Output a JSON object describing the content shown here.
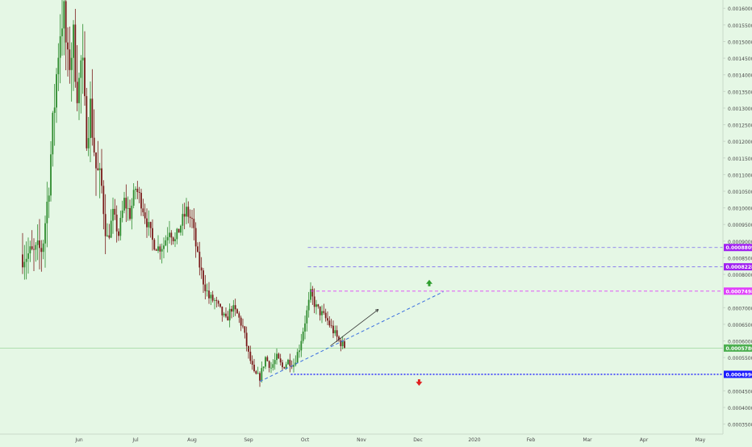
{
  "theme": {
    "background": "#e5f7e5",
    "axis_line": "#c9d8c9",
    "axis_text": "#4a4a4a",
    "up_color": "#2e8b2e",
    "down_color": "#7a1a1a",
    "current_price_color": "#4caf50",
    "resistance_color": "#a020f0",
    "resistance_line_color": "#7b68ee",
    "pink_level_color": "#e040fb",
    "support_color": "#1a1aff",
    "trendline_color": "#3a6fe0",
    "up_arrow_color": "#2e9e2e",
    "down_arrow_color": "#e02020",
    "projection_color": "#333333"
  },
  "chart_data": {
    "type": "candlestick",
    "title": "",
    "xlabel": "",
    "ylabel": "",
    "ylim": [
      0.00032,
      0.00162
    ],
    "y_ticks": [
      "0.0003500",
      "0.0004000",
      "0.0004500",
      "0.0005000",
      "0.0005500",
      "0.0006000",
      "0.0006500",
      "0.0007000",
      "0.0007500",
      "0.0008000",
      "0.0008500",
      "0.0009000",
      "0.0009500",
      "0.0010000",
      "0.0010500",
      "0.0011000",
      "0.0011500",
      "0.0012000",
      "0.0012500",
      "0.0013000",
      "0.0013500",
      "0.0014000",
      "0.0014500",
      "0.0015000",
      "0.0015500",
      "0.0016000"
    ],
    "x_ticks": [
      {
        "label": "Jun",
        "month": 6
      },
      {
        "label": "Jul",
        "month": 7
      },
      {
        "label": "Aug",
        "month": 8
      },
      {
        "label": "Sep",
        "month": 9
      },
      {
        "label": "Oct",
        "month": 10
      },
      {
        "label": "Nov",
        "month": 11
      },
      {
        "label": "Dec",
        "month": 12
      },
      {
        "label": "2020",
        "month": 13
      },
      {
        "label": "Feb",
        "month": 14
      },
      {
        "label": "Mar",
        "month": 15
      },
      {
        "label": "Apr",
        "month": 16
      },
      {
        "label": "May",
        "month": 17
      }
    ],
    "price_trace": [
      [
        5.0,
        0.00086
      ],
      [
        5.2,
        0.00086
      ],
      [
        5.35,
        0.00088
      ],
      [
        5.45,
        0.00104
      ],
      [
        5.55,
        0.00128
      ],
      [
        5.65,
        0.00152
      ],
      [
        5.72,
        0.0016
      ],
      [
        5.8,
        0.00142
      ],
      [
        5.9,
        0.0015
      ],
      [
        5.98,
        0.00134
      ],
      [
        6.05,
        0.00146
      ],
      [
        6.12,
        0.00122
      ],
      [
        6.2,
        0.0013
      ],
      [
        6.3,
        0.00112
      ],
      [
        6.4,
        0.00106
      ],
      [
        6.5,
        0.0009
      ],
      [
        6.6,
        0.00098
      ],
      [
        6.7,
        0.00092
      ],
      [
        6.8,
        0.00102
      ],
      [
        6.9,
        0.00098
      ],
      [
        7.0,
        0.00106
      ],
      [
        7.1,
        0.00102
      ],
      [
        7.2,
        0.00096
      ],
      [
        7.3,
        0.0009
      ],
      [
        7.4,
        0.00088
      ],
      [
        7.5,
        0.00089
      ],
      [
        7.6,
        0.00094
      ],
      [
        7.7,
        0.0009
      ],
      [
        7.8,
        0.00095
      ],
      [
        7.9,
        0.00099
      ],
      [
        8.0,
        0.00096
      ],
      [
        8.1,
        0.00085
      ],
      [
        8.2,
        0.00078
      ],
      [
        8.3,
        0.00073
      ],
      [
        8.4,
        0.00072
      ],
      [
        8.5,
        0.00069
      ],
      [
        8.6,
        0.00066
      ],
      [
        8.7,
        0.0007
      ],
      [
        8.8,
        0.00068
      ],
      [
        8.9,
        0.00064
      ],
      [
        9.0,
        0.00056
      ],
      [
        9.1,
        0.0005
      ],
      [
        9.2,
        0.00049
      ],
      [
        9.3,
        0.00055
      ],
      [
        9.4,
        0.00052
      ],
      [
        9.5,
        0.00055
      ],
      [
        9.6,
        0.00052
      ],
      [
        9.7,
        0.00054
      ],
      [
        9.8,
        0.00053
      ],
      [
        9.9,
        0.00058
      ],
      [
        10.0,
        0.00066
      ],
      [
        10.1,
        0.00074
      ],
      [
        10.2,
        0.0007
      ],
      [
        10.3,
        0.00068
      ],
      [
        10.4,
        0.00066
      ],
      [
        10.5,
        0.00063
      ],
      [
        10.6,
        0.0006
      ],
      [
        10.72,
        0.00058
      ]
    ],
    "current_price": {
      "label": "0.0005786",
      "value": 0.0005786
    },
    "levels": [
      {
        "label": "0.0008809",
        "value": 0.0008809,
        "kind": "resistance",
        "x_start": 10.05
      },
      {
        "label": "0.0008228",
        "value": 0.0008228,
        "kind": "resistance",
        "x_start": 10.05
      },
      {
        "label": "0.0007498",
        "value": 0.0007498,
        "kind": "pink-level",
        "x_start": 10.1
      },
      {
        "label": "0.0004996",
        "value": 0.0004996,
        "kind": "support",
        "x_start": 9.75
      }
    ],
    "trendline": {
      "start": [
        9.2,
        0.000478
      ],
      "end": [
        12.45,
        0.000748
      ]
    },
    "projection": {
      "start": [
        10.45,
        0.000585
      ],
      "end": [
        11.3,
        0.000695
      ]
    },
    "up_arrow": {
      "x": 12.2,
      "y": 0.000774
    },
    "down_arrow": {
      "x": 12.02,
      "y": 0.000475
    }
  }
}
